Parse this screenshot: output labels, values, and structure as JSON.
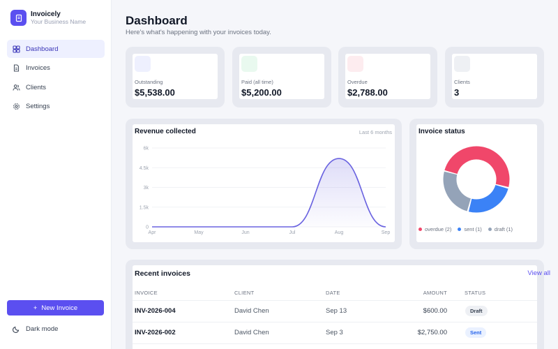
{
  "app": {
    "name": "Invoicely",
    "subtitle": "Your Business Name"
  },
  "nav": [
    {
      "label": "Dashboard",
      "icon": "dashboard-icon",
      "active": true
    },
    {
      "label": "Invoices",
      "icon": "invoice-icon"
    },
    {
      "label": "Clients",
      "icon": "users-icon"
    },
    {
      "label": "Settings",
      "icon": "gear-icon"
    }
  ],
  "new_invoice_label": "New Invoice",
  "dark_mode_label": "Dark mode",
  "header": {
    "title": "Dashboard",
    "subtitle": "Here's what's happening with your invoices today."
  },
  "stats": [
    {
      "label": "Outstanding",
      "value": "$5,538.00",
      "icon_color": "#eef0fe"
    },
    {
      "label": "Paid (all time)",
      "value": "$5,200.00",
      "icon_color": "#e9f9ef"
    },
    {
      "label": "Overdue",
      "value": "$2,788.00",
      "icon_color": "#fdecef"
    },
    {
      "label": "Clients",
      "value": "3",
      "icon_color": "#eef0f4"
    }
  ],
  "revenue": {
    "title": "Revenue collected",
    "period": "Last 6 months"
  },
  "status": {
    "title": "Invoice status"
  },
  "colors": {
    "accent": "#5b4ff0",
    "line": "#6a63e0",
    "overdue": "#f0476a",
    "sent": "#3b82f6",
    "draft": "#94a3b8"
  },
  "chart_data": [
    {
      "type": "area",
      "title": "Revenue collected",
      "categories": [
        "Apr",
        "May",
        "Jun",
        "Jul",
        "Aug",
        "Sep"
      ],
      "values": [
        0,
        0,
        0,
        0,
        5200,
        0
      ],
      "y_ticks": [
        "0",
        "1.5k",
        "3k",
        "4.5k",
        "6k"
      ],
      "ylim": [
        0,
        6000
      ],
      "smooth": true
    },
    {
      "type": "pie",
      "donut": true,
      "title": "Invoice status",
      "slices": [
        {
          "label": "overdue (2)",
          "value": 2,
          "color": "#f0476a"
        },
        {
          "label": "sent (1)",
          "value": 1,
          "color": "#3b82f6"
        },
        {
          "label": "draft (1)",
          "value": 1,
          "color": "#94a3b8"
        }
      ]
    }
  ],
  "recent": {
    "title": "Recent invoices",
    "view_all": "View all",
    "columns": [
      "INVOICE",
      "CLIENT",
      "DATE",
      "AMOUNT",
      "STATUS"
    ],
    "rows": [
      {
        "id": "INV-2026-004",
        "client": "David Chen",
        "date": "Sep 13",
        "amount": "$600.00",
        "status": "Draft"
      },
      {
        "id": "INV-2026-002",
        "client": "David Chen",
        "date": "Sep 3",
        "amount": "$2,750.00",
        "status": "Sent"
      }
    ]
  }
}
